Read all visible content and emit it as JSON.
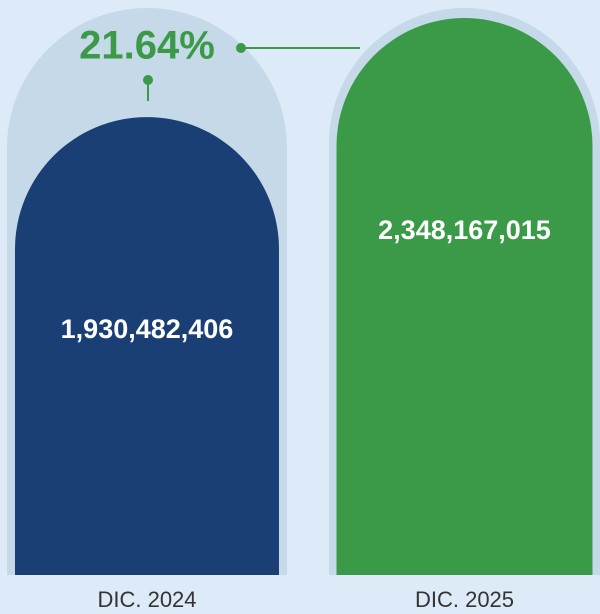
{
  "chart_data": {
    "type": "bar",
    "categories": [
      "DIC. 2024",
      "DIC. 2025"
    ],
    "series": [
      {
        "values": [
          1930482406,
          2348167015
        ],
        "value_labels": [
          "1,930,482,406",
          "2,348,167,015"
        ],
        "colors": [
          "#1a3f75",
          "#3a9a47"
        ]
      }
    ],
    "annotations": [
      "21.64%"
    ]
  }
}
